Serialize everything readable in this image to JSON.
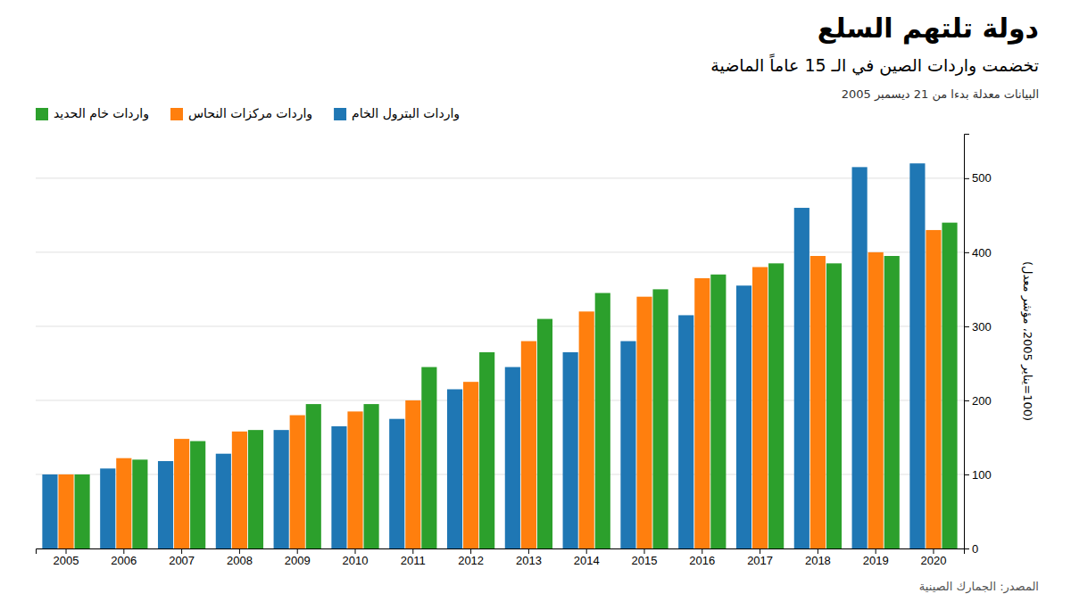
{
  "chart_data": {
    "type": "bar",
    "title": "دولة تلتهم السلع",
    "subtitle": "تخضمت واردات الصين في الـ 15 عاماً الماضية",
    "ylabel": "(100=يناير 2005، مؤشر معدل)",
    "annotations": [
      "البيانات معدلة بدءا من 21 ديسمبر 2005",
      "المصدر: الجمارك الصينية"
    ],
    "categories": [
      "2005",
      "2006",
      "2007",
      "2008",
      "2009",
      "2010",
      "2011",
      "2012",
      "2013",
      "2014",
      "2015",
      "2016",
      "2017",
      "2018",
      "2019",
      "2020"
    ],
    "series": [
      {
        "name": "واردات البترول الخام",
        "values": [
          100,
          108,
          118,
          128,
          160,
          165,
          175,
          215,
          245,
          265,
          280,
          315,
          355,
          460,
          515,
          520
        ]
      },
      {
        "name": "واردات مركزات النحاس",
        "values": [
          100,
          122,
          148,
          158,
          180,
          185,
          200,
          225,
          280,
          320,
          340,
          365,
          380,
          395,
          400,
          430
        ]
      },
      {
        "name": "واردات خام الحديد",
        "values": [
          100,
          120,
          145,
          160,
          195,
          195,
          245,
          265,
          310,
          345,
          350,
          370,
          385,
          385,
          395,
          440
        ]
      }
    ],
    "ylim": [
      0,
      560
    ],
    "yticks": [
      0,
      100,
      200,
      300,
      400,
      500
    ],
    "grid": true,
    "legend": "upper left"
  }
}
